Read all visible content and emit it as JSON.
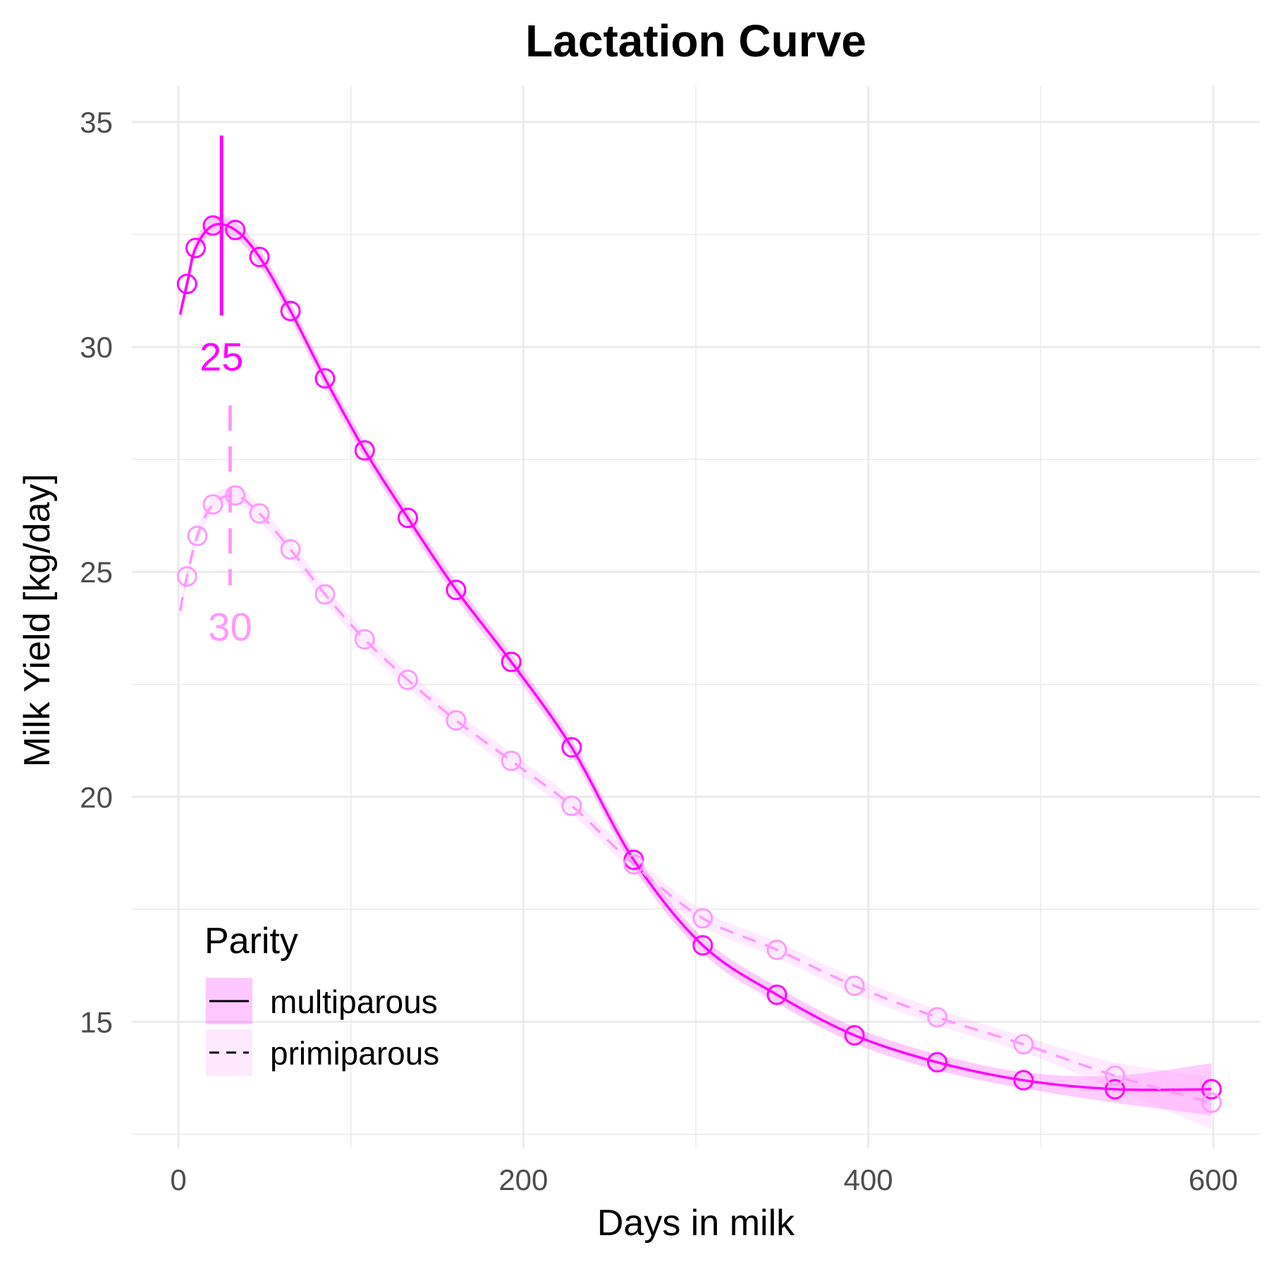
{
  "chart_data": {
    "type": "line",
    "title": "Lactation Curve",
    "xlabel": "Days in milk",
    "ylabel": "Milk Yield [kg/day]",
    "xlim": [
      -27,
      627
    ],
    "ylim": [
      12.2,
      35.8
    ],
    "x_ticks": [
      "0",
      "200",
      "400",
      "600"
    ],
    "y_ticks": [
      "15",
      "20",
      "25",
      "30",
      "35"
    ],
    "x_tick_values": [
      0,
      200,
      400,
      600
    ],
    "y_tick_values": [
      15,
      20,
      25,
      30,
      35
    ],
    "grid": true,
    "legend": {
      "title": "Parity",
      "position": "bottom-left",
      "entries": [
        "multiparous",
        "primiparous"
      ]
    },
    "colors": {
      "multiparous": "#ff00ff",
      "primiparous": "#ff99ff",
      "grid": "#ebebeb"
    },
    "series": [
      {
        "name": "multiparous",
        "line_style": "solid",
        "x": [
          5,
          10,
          20,
          33,
          47,
          65,
          85,
          108,
          133,
          161,
          193,
          228,
          264,
          304,
          347,
          392,
          440,
          490,
          543,
          599
        ],
        "y": [
          31.4,
          32.2,
          32.7,
          32.6,
          32.0,
          30.8,
          29.3,
          27.7,
          26.2,
          24.6,
          23.0,
          21.1,
          18.6,
          16.7,
          15.6,
          14.7,
          14.1,
          13.7,
          13.5,
          13.5
        ],
        "peak_day": 25,
        "peak_label": "25",
        "peak_line_range": [
          30.7,
          34.7
        ]
      },
      {
        "name": "primiparous",
        "line_style": "dashed",
        "x": [
          5,
          11,
          20,
          33,
          47,
          65,
          85,
          108,
          133,
          161,
          193,
          228,
          264,
          304,
          347,
          392,
          440,
          490,
          543,
          599
        ],
        "y": [
          24.9,
          25.8,
          26.5,
          26.7,
          26.3,
          25.5,
          24.5,
          23.5,
          22.6,
          21.7,
          20.8,
          19.8,
          18.5,
          17.3,
          16.6,
          15.8,
          15.1,
          14.5,
          13.8,
          13.2
        ],
        "peak_day": 30,
        "peak_label": "30",
        "peak_line_range": [
          24.7,
          28.7
        ]
      }
    ]
  }
}
